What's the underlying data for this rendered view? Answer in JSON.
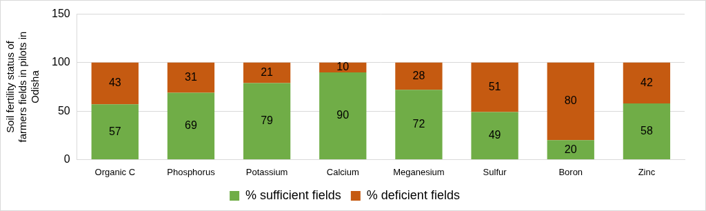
{
  "chart_data": {
    "type": "bar",
    "stacked": true,
    "data_labels": true,
    "grid": true,
    "legend": "bottom",
    "y_label": "Soil fertility status of farmers fields in pilots in Odisha",
    "categories": [
      "Organic C",
      "Phosphorus",
      "Potassium",
      "Calcium",
      "Meganesium",
      "Sulfur",
      "Boron",
      "Zinc"
    ],
    "series": [
      {
        "name": "% sufficient fields",
        "color": "#70ad47",
        "values": [
          57,
          69,
          79,
          90,
          72,
          49,
          20,
          58
        ]
      },
      {
        "name": "% deficient fields",
        "color": "#c55a11",
        "values": [
          43,
          31,
          21,
          10,
          28,
          51,
          80,
          42
        ]
      }
    ],
    "ylim": [
      0,
      150
    ],
    "yticks": [
      0,
      50,
      100,
      150
    ]
  }
}
